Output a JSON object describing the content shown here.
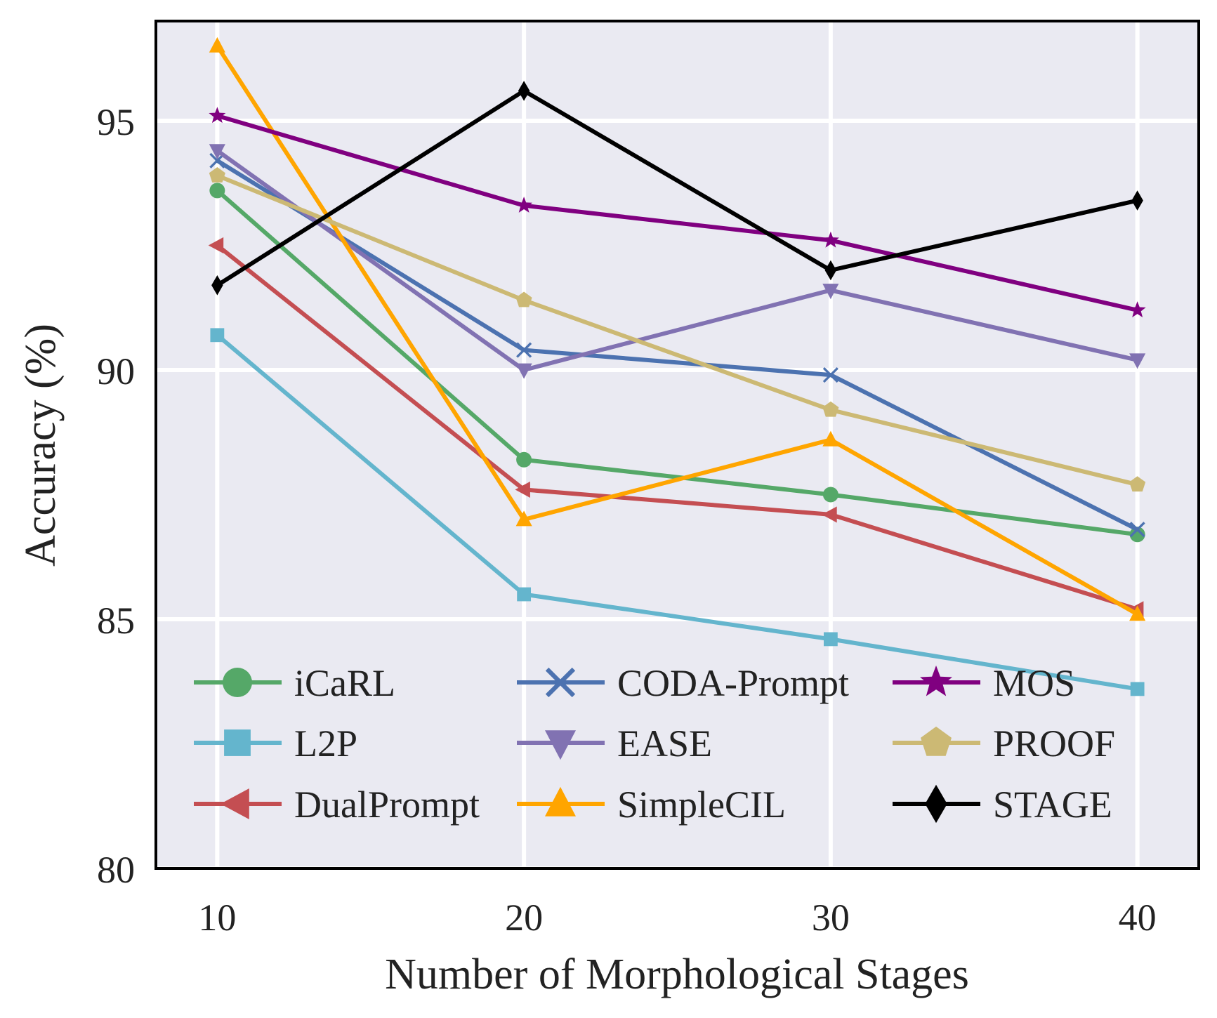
{
  "chart_data": {
    "type": "line",
    "title": "",
    "xlabel": "Number of Morphological Stages",
    "ylabel": "Accuracy (%)",
    "x": [
      10,
      20,
      30,
      40
    ],
    "x_tick_labels": [
      "10",
      "20",
      "30",
      "40"
    ],
    "xlim": [
      8,
      42
    ],
    "ylim": [
      80,
      97
    ],
    "y_ticks": [
      80,
      85,
      90,
      95
    ],
    "y_tick_labels": [
      "80",
      "85",
      "90",
      "95"
    ],
    "grid": true,
    "legend_position": "lower-left",
    "legend_columns": 3,
    "background_color": "#eaeaf2",
    "grid_color": "#ffffff",
    "series": [
      {
        "name": "iCaRL",
        "color": "#55a868",
        "marker": "circle",
        "values": [
          93.6,
          88.2,
          87.5,
          86.7
        ]
      },
      {
        "name": "L2P",
        "color": "#64b5cd",
        "marker": "square",
        "values": [
          90.7,
          85.5,
          84.6,
          83.6
        ]
      },
      {
        "name": "DualPrompt",
        "color": "#c44e52",
        "marker": "triangle-left",
        "values": [
          92.5,
          87.6,
          87.1,
          85.2
        ]
      },
      {
        "name": "CODA-Prompt",
        "color": "#4c72b0",
        "marker": "x",
        "values": [
          94.2,
          90.4,
          89.9,
          86.8
        ]
      },
      {
        "name": "EASE",
        "color": "#8172b2",
        "marker": "triangle-down",
        "values": [
          94.4,
          90.0,
          91.6,
          90.2
        ]
      },
      {
        "name": "SimpleCIL",
        "color": "#ffa500",
        "marker": "triangle-up",
        "values": [
          96.5,
          87.0,
          88.6,
          85.1
        ]
      },
      {
        "name": "MOS",
        "color": "#800080",
        "marker": "star",
        "values": [
          95.1,
          93.3,
          92.6,
          91.2
        ]
      },
      {
        "name": "PROOF",
        "color": "#ccb974",
        "marker": "pentagon",
        "values": [
          93.9,
          91.4,
          89.2,
          87.7
        ]
      },
      {
        "name": "STAGE",
        "color": "#000000",
        "marker": "diamond",
        "values": [
          91.7,
          95.6,
          92.0,
          93.4
        ]
      }
    ]
  }
}
